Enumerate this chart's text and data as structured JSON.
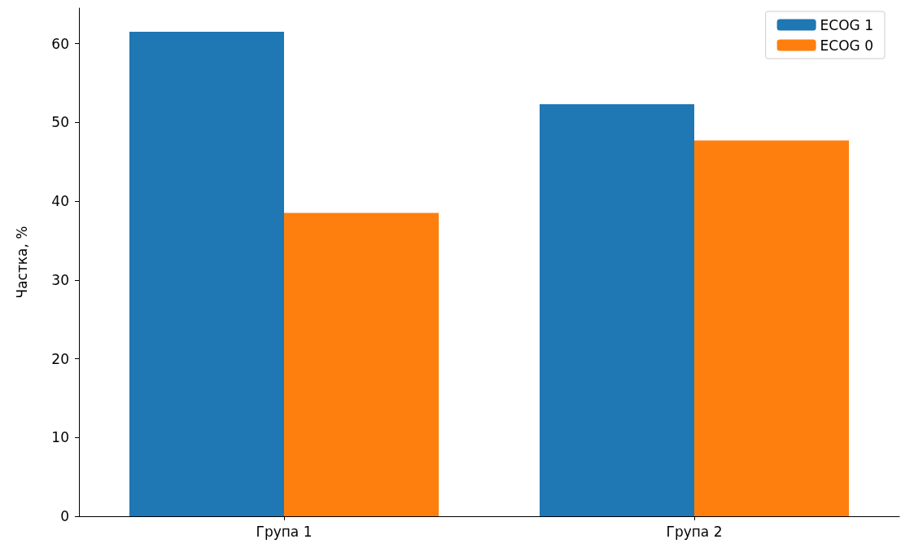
{
  "chart_data": {
    "type": "bar",
    "ylabel": "Частка, %",
    "categories": [
      "Група 1",
      "Група 2"
    ],
    "series": [
      {
        "name": "ECOG 1",
        "color": "#1f77b4",
        "values": [
          61.5,
          52.3
        ]
      },
      {
        "name": "ECOG 0",
        "color": "#ff7f0e",
        "values": [
          38.5,
          47.7
        ]
      }
    ],
    "ylim": [
      0,
      64.5
    ],
    "yticks": [
      0,
      10,
      20,
      30,
      40,
      50,
      60
    ],
    "grid": false,
    "legend": "top right"
  }
}
